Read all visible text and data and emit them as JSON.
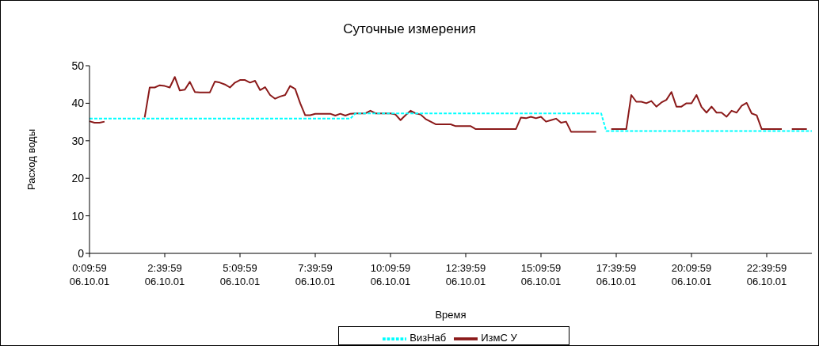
{
  "chart_data": {
    "type": "line",
    "title": "Суточные измерения",
    "xlabel": "Время",
    "ylabel": "Расход воды",
    "categories": [
      "0:09:59\n06.10.01",
      null,
      null,
      null,
      null,
      null,
      null,
      null,
      null,
      null,
      null,
      null,
      null,
      null,
      null,
      "2:39:59\n06.10.01",
      null,
      null,
      null,
      null,
      null,
      null,
      null,
      null,
      null,
      null,
      null,
      null,
      null,
      null,
      "5:09:59\n06.10.01",
      null,
      null,
      null,
      null,
      null,
      null,
      null,
      null,
      null,
      null,
      null,
      null,
      null,
      null,
      "7:39:59\n06.10.01",
      null,
      null,
      null,
      null,
      null,
      null,
      null,
      null,
      null,
      null,
      null,
      null,
      null,
      null,
      "10:09:59\n06.10.01",
      null,
      null,
      null,
      null,
      null,
      null,
      null,
      null,
      null,
      null,
      null,
      null,
      null,
      null,
      "12:39:59\n06.10.01",
      null,
      null,
      null,
      null,
      null,
      null,
      null,
      null,
      null,
      null,
      null,
      null,
      null,
      null,
      "15:09:59\n06.10.01",
      null,
      null,
      null,
      null,
      null,
      null,
      null,
      null,
      null,
      null,
      null,
      null,
      null,
      null,
      "17:39:59\n06.10.01",
      null,
      null,
      null,
      null,
      null,
      null,
      null,
      null,
      null,
      null,
      null,
      null,
      null,
      null,
      "20:09:59\n06.10.01",
      null,
      null,
      null,
      null,
      null,
      null,
      null,
      null,
      null,
      null,
      null,
      null,
      null,
      null,
      "22:39:59\n06.10.01",
      null,
      null,
      null,
      null,
      null,
      null,
      null,
      null,
      null
    ],
    "ylim": [
      0,
      50
    ],
    "yticks": [
      0,
      10,
      20,
      30,
      40,
      50
    ],
    "grid": false,
    "legend": "bottom",
    "marker": "none",
    "series": [
      {
        "name": "ИзмС У",
        "color": "#8b1a1a",
        "line_style": "solid",
        "values": [
          35.2,
          34.8,
          34.8,
          35.1,
          null,
          null,
          null,
          null,
          null,
          null,
          null,
          36.2,
          44.2,
          44.2,
          44.8,
          44.6,
          44.2,
          47,
          43.4,
          43.6,
          45.7,
          43,
          42.9,
          42.9,
          42.9,
          45.8,
          45.5,
          45,
          44.2,
          45.5,
          46.2,
          46.2,
          45.5,
          46,
          43.5,
          44.3,
          42.2,
          41.2,
          41.8,
          42.2,
          44.6,
          43.8,
          40,
          36.8,
          36.8,
          37.2,
          37.2,
          37.2,
          37.2,
          36.7,
          37.2,
          36.7,
          37.2,
          37.3,
          37.3,
          37.3,
          38,
          37.3,
          37.3,
          37.3,
          37.3,
          37,
          35.5,
          36.8,
          38,
          37.3,
          37,
          35.8,
          35.1,
          34.4,
          34.4,
          34.4,
          34.4,
          33.9,
          33.9,
          33.9,
          33.9,
          33.1,
          33.1,
          33.1,
          33.1,
          33.1,
          33.1,
          33.1,
          33.1,
          33.1,
          36.2,
          36,
          36.4,
          36,
          36.4,
          35.1,
          35.5,
          35.9,
          34.8,
          35.1,
          32.4,
          32.4,
          32.4,
          32.4,
          32.4,
          32.4,
          null,
          null,
          33.1,
          33.1,
          33.1,
          33.1,
          42.2,
          40.4,
          40.4,
          40,
          40.6,
          39.1,
          40.2,
          40.9,
          43,
          39.1,
          39.1,
          40,
          40,
          42.2,
          39,
          37.5,
          39.1,
          37.5,
          37.5,
          36.4,
          38,
          37.5,
          39.3,
          40.1,
          37.3,
          36.8,
          33.1,
          33.1,
          33.1,
          33.1,
          33.1,
          null,
          33.1,
          33.1,
          33.1,
          33.1,
          null
        ]
      },
      {
        "name": "ВизНаб",
        "color": "#00ffff",
        "line_style": "dashed",
        "values": [
          35.9,
          35.9,
          35.9,
          35.9,
          35.9,
          35.9,
          35.9,
          35.9,
          35.9,
          35.9,
          35.9,
          35.9,
          35.9,
          35.9,
          35.9,
          35.9,
          35.9,
          35.9,
          35.9,
          35.9,
          35.9,
          35.9,
          35.9,
          35.9,
          35.9,
          35.9,
          35.9,
          35.9,
          35.9,
          35.9,
          35.9,
          35.9,
          35.9,
          35.9,
          35.9,
          35.9,
          35.9,
          35.9,
          35.9,
          35.9,
          35.9,
          35.9,
          35.9,
          35.9,
          35.9,
          35.9,
          35.9,
          35.9,
          35.9,
          35.9,
          35.9,
          35.9,
          35.9,
          37.3,
          37.3,
          37.3,
          37.3,
          37.3,
          37.3,
          37.3,
          37.3,
          37.3,
          37.3,
          37.3,
          37.3,
          37.3,
          37.3,
          37.3,
          37.3,
          37.3,
          37.3,
          37.3,
          37.3,
          37.3,
          37.3,
          37.3,
          37.3,
          37.3,
          37.3,
          37.3,
          37.3,
          37.3,
          37.3,
          37.3,
          37.3,
          37.3,
          37.3,
          37.3,
          37.3,
          37.3,
          37.3,
          37.3,
          37.3,
          37.3,
          37.3,
          37.3,
          37.3,
          37.3,
          37.3,
          37.3,
          37.3,
          37.3,
          37.3,
          32.6,
          32.6,
          32.6,
          32.6,
          32.6,
          32.6,
          32.6,
          32.6,
          32.6,
          32.6,
          32.6,
          32.6,
          32.6,
          32.6,
          32.6,
          32.6,
          32.6,
          32.6,
          32.6,
          32.6,
          32.6,
          32.6,
          32.6,
          32.6,
          32.6,
          32.6,
          32.6,
          32.6,
          32.6,
          32.6,
          32.6,
          32.6,
          32.6,
          32.6,
          32.6,
          32.6,
          32.6,
          32.6,
          32.6,
          32.6,
          32.6,
          32.6
        ]
      }
    ]
  }
}
